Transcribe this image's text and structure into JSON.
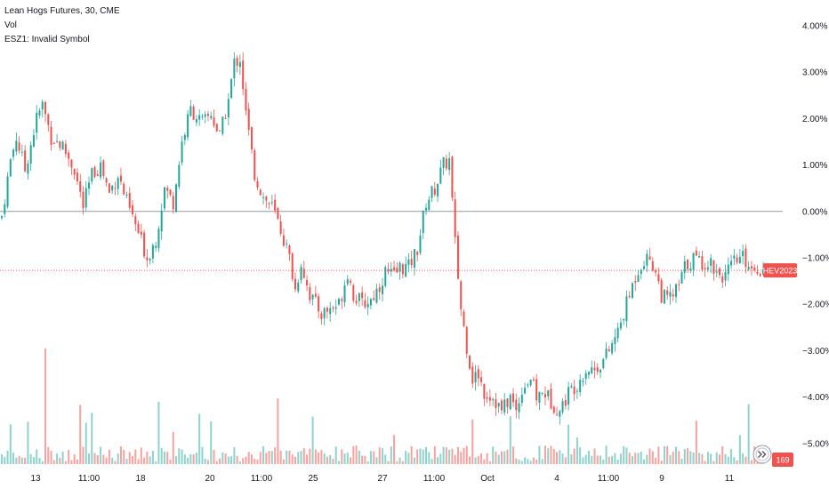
{
  "legend": {
    "title": "Lean Hogs Futures, 30, CME",
    "vol": "Vol",
    "overlay": "ESZ1: Invalid Symbol"
  },
  "colors": {
    "up": "#26a69a",
    "down": "#ef5350",
    "vol_up": "#8fd3cc",
    "vol_down": "#f5a3a1",
    "zero_line": "#9598a1",
    "ref_line": "#ef5350",
    "badge": "#ef5350"
  },
  "icons": {
    "autoscale": "double-chevron-icon"
  },
  "chart_data": {
    "type": "candlestick",
    "y_unit": "%",
    "yticks": [
      "4.00%",
      "3.00%",
      "2.00%",
      "1.00%",
      "0.00%",
      "−1.00%",
      "−2.00%",
      "−3.00%",
      "−4.00%",
      "−5.00%"
    ],
    "ylim": [
      -5.2,
      4.2
    ],
    "xticks": [
      "13",
      "11:00",
      "18",
      "20",
      "11:00",
      "25",
      "27",
      "11:00",
      "Oct",
      "4",
      "11:00",
      "9",
      "11"
    ],
    "reference_line": {
      "label": "HEV2023",
      "value": -1.27
    },
    "volume_badge": "169",
    "anchors": [
      [
        0,
        -0.1
      ],
      [
        3,
        1.1
      ],
      [
        5,
        1.6
      ],
      [
        8,
        0.9
      ],
      [
        12,
        2.0
      ],
      [
        14,
        2.3
      ],
      [
        17,
        1.6
      ],
      [
        21,
        1.4
      ],
      [
        25,
        0.9
      ],
      [
        28,
        0.1
      ],
      [
        31,
        0.8
      ],
      [
        34,
        1.0
      ],
      [
        37,
        0.4
      ],
      [
        40,
        0.8
      ],
      [
        43,
        0.2
      ],
      [
        46,
        -0.3
      ],
      [
        50,
        -1.0
      ],
      [
        53,
        -0.6
      ],
      [
        56,
        0.5
      ],
      [
        59,
        0.2
      ],
      [
        62,
        1.5
      ],
      [
        65,
        2.2
      ],
      [
        69,
        1.9
      ],
      [
        72,
        2.1
      ],
      [
        75,
        1.6
      ],
      [
        78,
        2.4
      ],
      [
        80,
        3.2
      ],
      [
        82,
        3.3
      ],
      [
        84,
        2.1
      ],
      [
        87,
        0.8
      ],
      [
        90,
        0.3
      ],
      [
        93,
        0.1
      ],
      [
        96,
        -0.4
      ],
      [
        99,
        -1.0
      ],
      [
        101,
        -1.7
      ],
      [
        103,
        -1.1
      ],
      [
        106,
        -1.8
      ],
      [
        108,
        -2.0
      ],
      [
        110,
        -2.2
      ],
      [
        113,
        -2.1
      ],
      [
        116,
        -2.0
      ],
      [
        119,
        -1.3
      ],
      [
        121,
        -1.8
      ],
      [
        124,
        -2.0
      ],
      [
        127,
        -1.9
      ],
      [
        130,
        -1.6
      ],
      [
        132,
        -1.3
      ],
      [
        135,
        -1.4
      ],
      [
        137,
        -1.2
      ],
      [
        140,
        -1.2
      ],
      [
        143,
        -0.8
      ],
      [
        146,
        0.2
      ],
      [
        149,
        0.5
      ],
      [
        152,
        1.0
      ],
      [
        154,
        1.1
      ],
      [
        156,
        -0.7
      ],
      [
        158,
        -2.1
      ],
      [
        160,
        -2.9
      ],
      [
        162,
        -3.6
      ],
      [
        164,
        -3.5
      ],
      [
        166,
        -3.9
      ],
      [
        169,
        -4.0
      ],
      [
        172,
        -4.3
      ],
      [
        175,
        -4.0
      ],
      [
        177,
        -4.3
      ],
      [
        179,
        -3.8
      ],
      [
        182,
        -3.6
      ],
      [
        184,
        -4.0
      ],
      [
        187,
        -3.9
      ],
      [
        189,
        -4.1
      ],
      [
        192,
        -4.3
      ],
      [
        195,
        -3.9
      ],
      [
        198,
        -3.7
      ],
      [
        201,
        -3.4
      ],
      [
        204,
        -3.4
      ],
      [
        207,
        -3.2
      ],
      [
        209,
        -3.0
      ],
      [
        212,
        -2.6
      ],
      [
        214,
        -2.2
      ],
      [
        216,
        -1.8
      ],
      [
        218,
        -1.4
      ],
      [
        220,
        -1.1
      ],
      [
        223,
        -1.0
      ],
      [
        225,
        -1.3
      ],
      [
        227,
        -1.8
      ],
      [
        229,
        -1.9
      ],
      [
        231,
        -1.8
      ],
      [
        233,
        -1.6
      ],
      [
        235,
        -1.2
      ],
      [
        238,
        -1.0
      ],
      [
        241,
        -1.1
      ],
      [
        244,
        -1.1
      ],
      [
        246,
        -1.3
      ],
      [
        249,
        -1.4
      ],
      [
        252,
        -1.1
      ],
      [
        255,
        -1.0
      ],
      [
        258,
        -1.2
      ],
      [
        260,
        -1.2
      ],
      [
        262,
        -1.3
      ]
    ]
  }
}
